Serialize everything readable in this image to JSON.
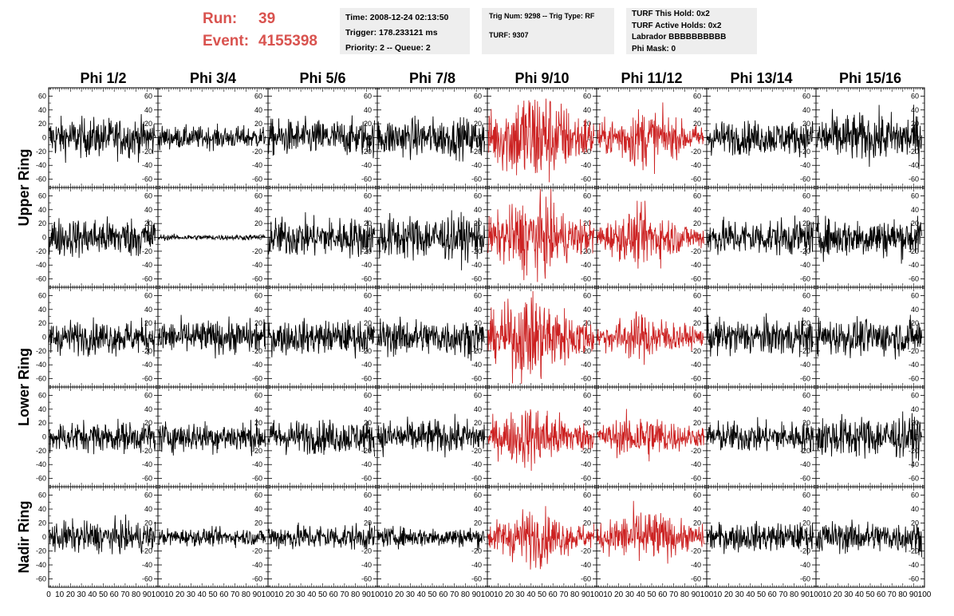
{
  "header": {
    "run_label": "Run:",
    "run_value": "39",
    "event_label": "Event:",
    "event_value": "4155398",
    "accent_color": "#d9534f"
  },
  "info": {
    "time": "Time: 2008-12-24 02:13:50",
    "trigger": "Trigger: 178.233121 ms",
    "priority": "Priority: 2 -- Queue: 2",
    "trig_num": "Trig Num: 9298 -- Trig Type: RF",
    "turf": "TURF: 9307",
    "turf_this_hold": "TURF This Hold: 0x2",
    "turf_active_holds": "TURF Active Holds: 0x2",
    "labrador": "Labrador BBBBBBBBBB",
    "phi_mask": "Phi Mask: 0"
  },
  "chart_data": {
    "type": "line",
    "columns": [
      "Phi 1/2",
      "Phi 3/4",
      "Phi 5/6",
      "Phi 7/8",
      "Phi 9/10",
      "Phi 11/12",
      "Phi 13/14",
      "Phi 15/16"
    ],
    "rows": [
      "Upper Ring",
      "Upper Ring",
      "Lower Ring",
      "Lower Ring",
      "Nadir Ring"
    ],
    "row_labels": [
      {
        "label": "Upper Ring",
        "rows": [
          0,
          1
        ]
      },
      {
        "label": "Lower Ring",
        "rows": [
          2,
          3
        ]
      },
      {
        "label": "Nadir Ring",
        "rows": [
          4
        ]
      }
    ],
    "xlim": [
      0,
      100
    ],
    "ylim": [
      -72,
      72
    ],
    "x_ticks": [
      0,
      10,
      20,
      30,
      40,
      50,
      60,
      70,
      80,
      90,
      100
    ],
    "x_tick_labels": [
      "0",
      "10",
      "20",
      "30",
      "40",
      "50",
      "60",
      "70",
      "80",
      "90",
      "100"
    ],
    "y_ticks": [
      -60,
      -40,
      -20,
      0,
      20,
      40,
      60
    ],
    "y_tick_labels": [
      "-60",
      "-40",
      "-20",
      "0",
      "20",
      "40",
      "60"
    ],
    "samples_per_trace": 260,
    "trace_color_default": "#000000",
    "trace_color_triggered": "#cc2222",
    "triggered_columns": [
      4,
      5
    ],
    "trace_amplitude": [
      [
        14,
        8,
        13,
        14,
        26,
        15,
        12,
        17
      ],
      [
        14,
        2,
        14,
        16,
        20,
        14,
        13,
        14
      ],
      [
        12,
        12,
        12,
        13,
        22,
        12,
        13,
        13
      ],
      [
        11,
        11,
        12,
        12,
        16,
        12,
        11,
        15
      ],
      [
        11,
        6,
        9,
        7,
        14,
        14,
        10,
        11
      ]
    ]
  }
}
